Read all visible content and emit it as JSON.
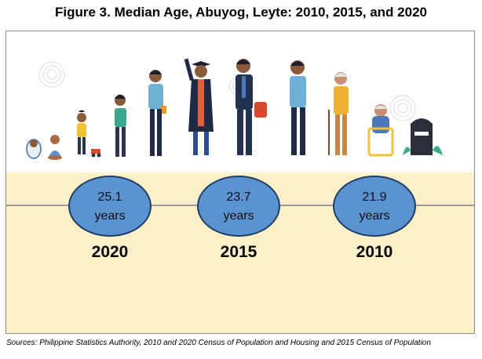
{
  "title": "Figure 3. Median Age, Abuyog, Leyte: 2010, 2015, and 2020",
  "source": "Sources: Philippine Statistics Authority, 2010 and 2020 Census of Population and Housing and 2015 Census of Population",
  "figures": [
    "baby",
    "infant",
    "toddler",
    "child",
    "teen",
    "graduate",
    "businessman",
    "adult",
    "elderly",
    "wheelchair-elder",
    "tombstone"
  ],
  "colors": {
    "bubble": "#5b92d0",
    "bubble_border": "#1f3f66",
    "band": "#fdf0c8",
    "line": "#9a9a9a"
  },
  "chart_data": {
    "type": "table",
    "title": "Figure 3. Median Age, Abuyog, Leyte: 2010, 2015, and 2020",
    "categories": [
      "2020",
      "2015",
      "2010"
    ],
    "values": [
      25.1,
      23.7,
      21.9
    ],
    "value_labels": [
      "25.1",
      "23.7",
      "21.9"
    ],
    "unit": "years"
  }
}
